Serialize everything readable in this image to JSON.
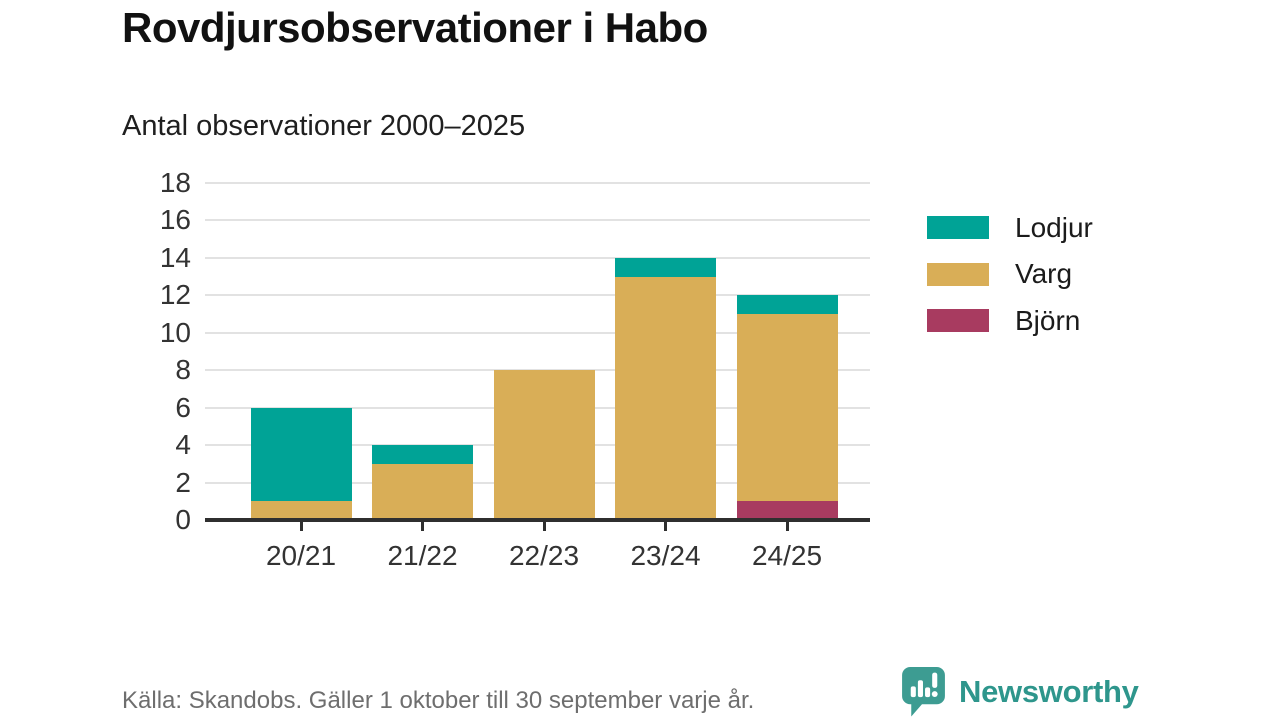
{
  "header": {
    "title": "Rovdjursobservationer i Habo",
    "subtitle": "Antal observationer 2000–2025"
  },
  "footer": {
    "source": "Källa: Skandobs. Gäller 1 oktober till 30 september varje år.",
    "brand": "Newsworthy"
  },
  "colors": {
    "lodjur": "#00a396",
    "varg": "#d9ae57",
    "bjorn": "#a83b60",
    "grid": "#e2e2e2",
    "axis": "#2f2f2f",
    "tick_text": "#333333",
    "footer_text": "#6e6e6e",
    "brand_teal": "#2e968c",
    "brand_icon_teal": "#3d9c92"
  },
  "chart_data": {
    "type": "bar",
    "stacked": true,
    "title": "Rovdjursobservationer i Habo",
    "subtitle": "Antal observationer 2000–2025",
    "categories": [
      "20/21",
      "21/22",
      "22/23",
      "23/24",
      "24/25"
    ],
    "series": [
      {
        "name": "Lodjur",
        "color": "#00a396",
        "values": [
          5,
          1,
          0,
          1,
          1
        ]
      },
      {
        "name": "Varg",
        "color": "#d9ae57",
        "values": [
          1,
          3,
          8,
          13,
          10
        ]
      },
      {
        "name": "Björn",
        "color": "#a83b60",
        "values": [
          0,
          0,
          0,
          0,
          1
        ]
      }
    ],
    "stack_order_bottom_to_top": [
      "Björn",
      "Varg",
      "Lodjur"
    ],
    "totals": [
      6,
      4,
      8,
      14,
      12
    ],
    "ylabel": "",
    "xlabel": "",
    "ylim": [
      0,
      18
    ],
    "ytick_step": 2,
    "grid": true,
    "legend_position": "right"
  }
}
